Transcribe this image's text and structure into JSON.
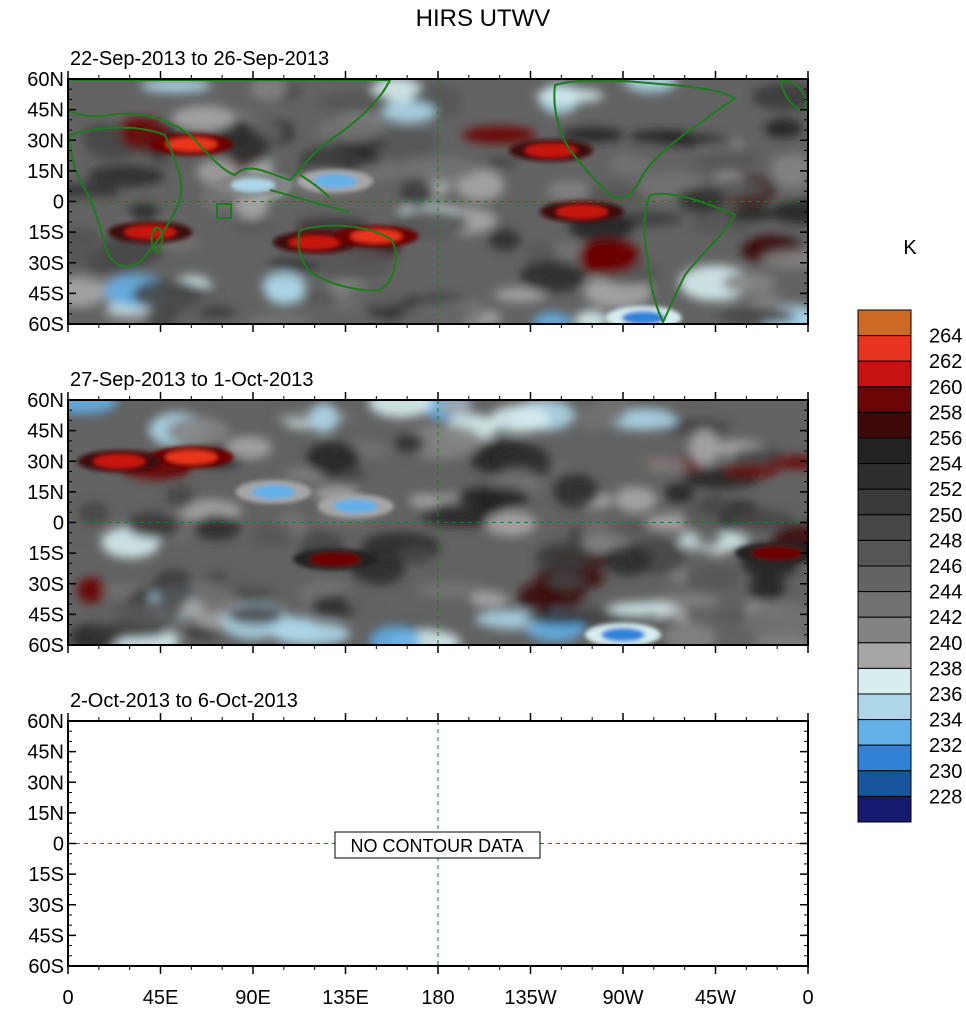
{
  "title": "HIRS UTWV",
  "units": "K",
  "no_data_label": "NO CONTOUR DATA",
  "colorbar": {
    "labels": [
      "264",
      "262",
      "260",
      "258",
      "256",
      "254",
      "252",
      "250",
      "248",
      "246",
      "244",
      "242",
      "240",
      "238",
      "236",
      "234",
      "232",
      "230",
      "228"
    ],
    "colors": [
      "#cf6a24",
      "#e8341e",
      "#c61210",
      "#6c0606",
      "#3c0808",
      "#222222",
      "#2e2e2e",
      "#3a3a3a",
      "#474747",
      "#555555",
      "#636363",
      "#727272",
      "#838383",
      "#a6a6a6",
      "#d7edf0",
      "#add6e8",
      "#63b0e8",
      "#2f82d8",
      "#18559c",
      "#161a6e"
    ]
  },
  "chart_data": [
    {
      "type": "heatmap",
      "subtitle": "22-Sep-2013 to 26-Sep-2013",
      "has_data": true,
      "x_ticks": [
        "0",
        "45E",
        "90E",
        "135E",
        "180",
        "135W",
        "90W",
        "45W",
        "0"
      ],
      "y_ticks": [
        "60N",
        "45N",
        "30N",
        "15N",
        "0",
        "15S",
        "30S",
        "45S",
        "60S"
      ],
      "xlim": [
        0,
        360
      ],
      "ylim": [
        -60,
        60
      ],
      "high_regions": [
        {
          "lon": 60,
          "lat": 28,
          "value": 262
        },
        {
          "lon": 235,
          "lat": 25,
          "value": 260
        },
        {
          "lon": 250,
          "lat": -5,
          "value": 260
        },
        {
          "lon": 120,
          "lat": -20,
          "value": 260
        },
        {
          "lon": 150,
          "lat": -17,
          "value": 262
        },
        {
          "lon": 40,
          "lat": -15,
          "value": 260
        }
      ],
      "low_regions": [
        {
          "lon": 130,
          "lat": 10,
          "value": 232
        },
        {
          "lon": 90,
          "lat": 8,
          "value": 234
        },
        {
          "lon": 280,
          "lat": -57,
          "value": 230
        }
      ]
    },
    {
      "type": "heatmap",
      "subtitle": "27-Sep-2013 to 1-Oct-2013",
      "has_data": true,
      "x_ticks": [
        "0",
        "45E",
        "90E",
        "135E",
        "180",
        "135W",
        "90W",
        "45W",
        "0"
      ],
      "y_ticks": [
        "60N",
        "45N",
        "30N",
        "15N",
        "0",
        "15S",
        "30S",
        "45S",
        "60S"
      ],
      "xlim": [
        0,
        360
      ],
      "ylim": [
        -60,
        60
      ],
      "high_regions": [
        {
          "lon": 60,
          "lat": 32,
          "value": 262
        },
        {
          "lon": 25,
          "lat": 30,
          "value": 260
        },
        {
          "lon": 130,
          "lat": -18,
          "value": 258
        },
        {
          "lon": 345,
          "lat": -15,
          "value": 258
        }
      ],
      "low_regions": [
        {
          "lon": 100,
          "lat": 15,
          "value": 232
        },
        {
          "lon": 140,
          "lat": 8,
          "value": 232
        },
        {
          "lon": 270,
          "lat": -55,
          "value": 230
        }
      ]
    },
    {
      "type": "heatmap",
      "subtitle": "2-Oct-2013 to 6-Oct-2013",
      "has_data": false,
      "x_ticks": [
        "0",
        "45E",
        "90E",
        "135E",
        "180",
        "135W",
        "90W",
        "45W",
        "0"
      ],
      "y_ticks": [
        "60N",
        "45N",
        "30N",
        "15N",
        "0",
        "15S",
        "30S",
        "45S",
        "60S"
      ],
      "xlim": [
        0,
        360
      ],
      "ylim": [
        -60,
        60
      ]
    }
  ]
}
